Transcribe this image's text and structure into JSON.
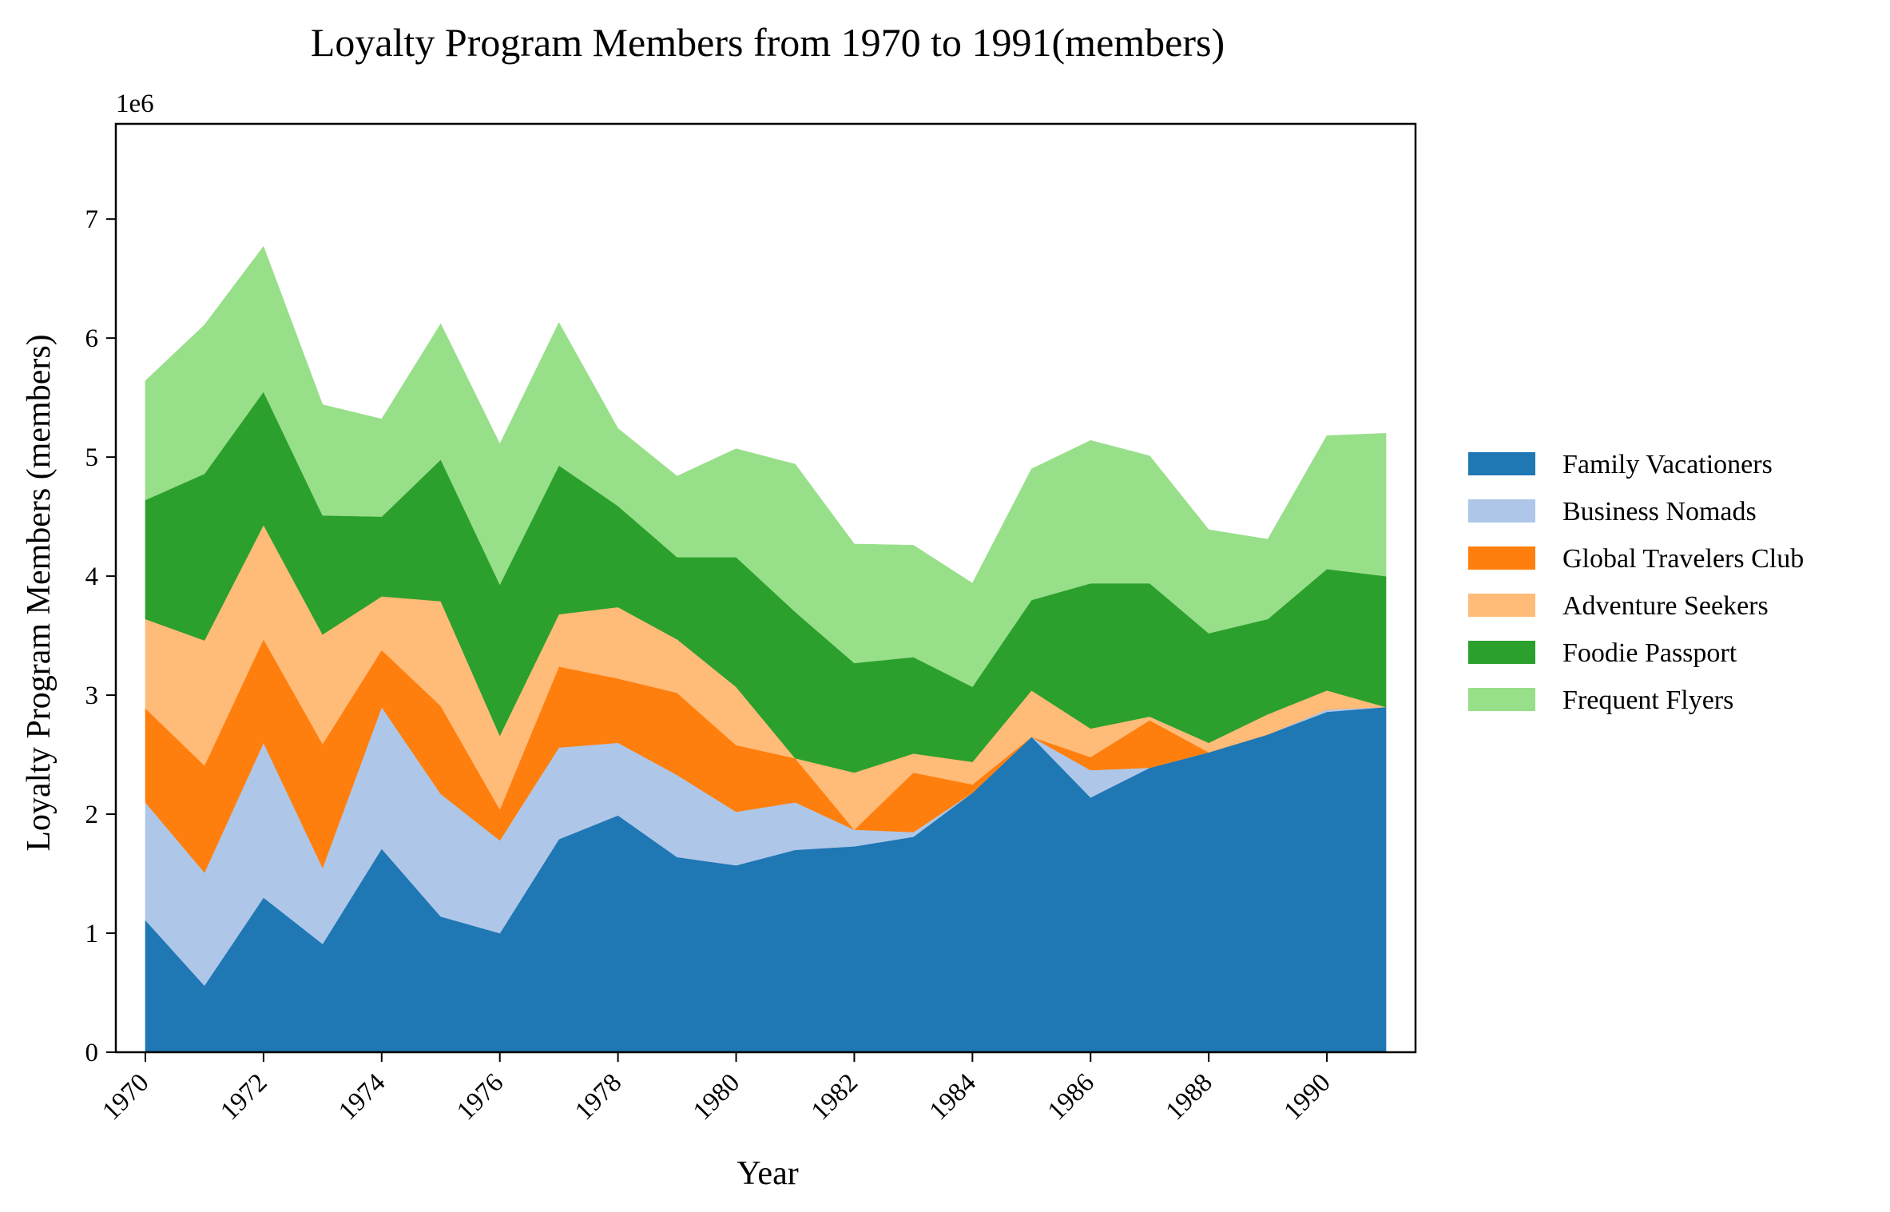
{
  "chart_data": {
    "type": "area",
    "stacked": true,
    "title": "Loyalty Program Members from 1970 to 1991(members)",
    "xlabel": "Year",
    "ylabel": "Loyalty Program Members (members)",
    "y_offset_label": "1e6",
    "y_scale": 1000000,
    "x": [
      1970,
      1971,
      1972,
      1973,
      1974,
      1975,
      1976,
      1977,
      1978,
      1979,
      1980,
      1981,
      1982,
      1983,
      1984,
      1985,
      1986,
      1987,
      1988,
      1989,
      1990,
      1991
    ],
    "xlim": [
      1969.5,
      1991.5
    ],
    "ylim": [
      0,
      7800000
    ],
    "x_ticks": [
      1970,
      1972,
      1974,
      1976,
      1978,
      1980,
      1982,
      1984,
      1986,
      1988,
      1990
    ],
    "y_ticks": [
      0,
      1000000,
      2000000,
      3000000,
      4000000,
      5000000,
      6000000,
      7000000
    ],
    "y_tick_labels": [
      "0",
      "1",
      "2",
      "3",
      "4",
      "5",
      "6",
      "7"
    ],
    "grid": false,
    "legend_position": "right",
    "series": [
      {
        "name": "Family Vacationers",
        "color": "#1f77b4",
        "values": [
          1110000,
          560000,
          1300000,
          910000,
          1710000,
          1140000,
          1000000,
          1790000,
          1990000,
          1640000,
          1570000,
          1700000,
          1730000,
          1810000,
          2180000,
          2650000,
          2140000,
          2390000,
          2520000,
          2670000,
          2860000,
          2900000
        ]
      },
      {
        "name": "Business Nomads",
        "color": "#aec7e8",
        "values": [
          990000,
          950000,
          1300000,
          640000,
          1190000,
          1030000,
          780000,
          770000,
          610000,
          690000,
          450000,
          400000,
          140000,
          40000,
          0,
          0,
          230000,
          0,
          0,
          0,
          20000,
          0
        ]
      },
      {
        "name": "Global Travelers Club",
        "color": "#ff7f0e",
        "values": [
          790000,
          900000,
          870000,
          1040000,
          480000,
          740000,
          260000,
          680000,
          540000,
          690000,
          560000,
          370000,
          0,
          500000,
          70000,
          0,
          110000,
          400000,
          0,
          0,
          0,
          0
        ]
      },
      {
        "name": "Adventure Seekers",
        "color": "#ffbb78",
        "values": [
          750000,
          1050000,
          960000,
          920000,
          450000,
          880000,
          620000,
          440000,
          600000,
          450000,
          490000,
          0,
          480000,
          160000,
          190000,
          390000,
          240000,
          30000,
          80000,
          170000,
          160000,
          0
        ]
      },
      {
        "name": "Foodie Passport",
        "color": "#2ca02c",
        "values": [
          1000000,
          1400000,
          1120000,
          1000000,
          670000,
          1190000,
          1270000,
          1250000,
          850000,
          690000,
          1090000,
          1230000,
          920000,
          810000,
          630000,
          760000,
          1220000,
          1120000,
          920000,
          800000,
          1020000,
          1100000
        ]
      },
      {
        "name": "Frequent Flyers",
        "color": "#98df8a",
        "values": [
          1000000,
          1250000,
          1220000,
          930000,
          820000,
          1140000,
          1180000,
          1200000,
          650000,
          680000,
          910000,
          1240000,
          1000000,
          940000,
          870000,
          1100000,
          1200000,
          1070000,
          870000,
          670000,
          1120000,
          1200000
        ]
      }
    ]
  }
}
